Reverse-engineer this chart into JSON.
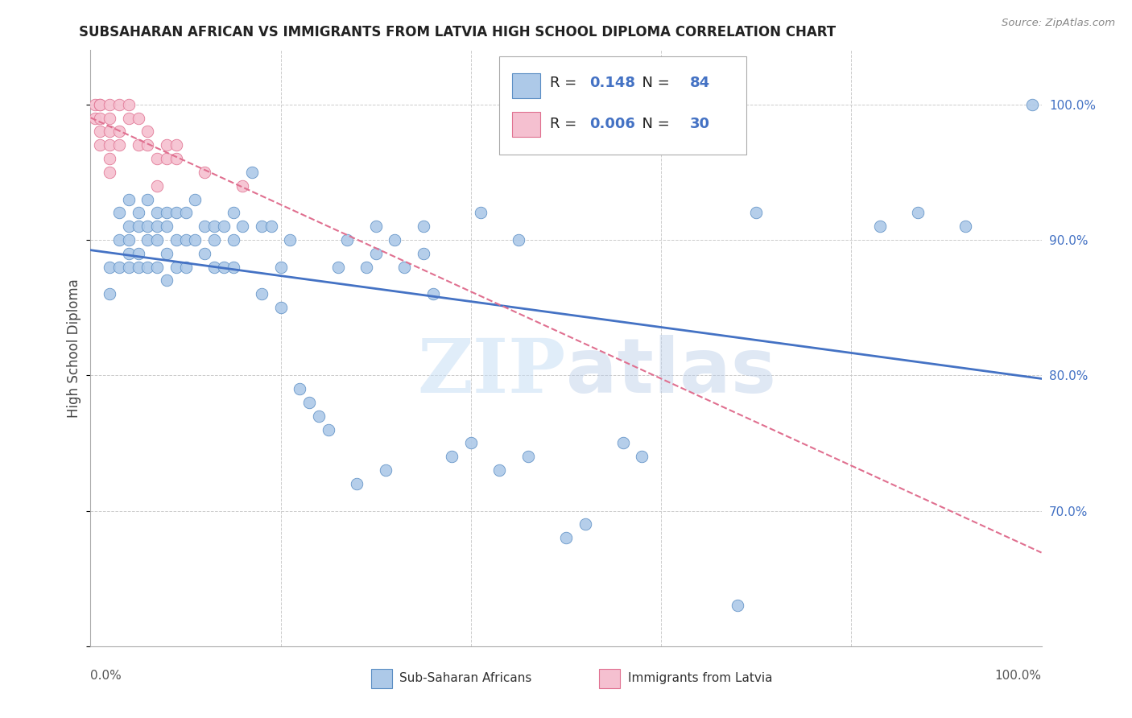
{
  "title": "SUBSAHARAN AFRICAN VS IMMIGRANTS FROM LATVIA HIGH SCHOOL DIPLOMA CORRELATION CHART",
  "source": "Source: ZipAtlas.com",
  "ylabel": "High School Diploma",
  "legend_blue_R": "0.148",
  "legend_blue_N": "84",
  "legend_pink_R": "0.006",
  "legend_pink_N": "30",
  "legend_label_blue": "Sub-Saharan Africans",
  "legend_label_pink": "Immigrants from Latvia",
  "watermark_zip": "ZIP",
  "watermark_atlas": "atlas",
  "blue_color": "#adc9e8",
  "blue_edge_color": "#5b8ec4",
  "blue_line_color": "#4472c4",
  "pink_color": "#f5c0d0",
  "pink_edge_color": "#e07090",
  "pink_line_color": "#e07090",
  "blue_scatter_x": [
    0.02,
    0.02,
    0.03,
    0.03,
    0.03,
    0.04,
    0.04,
    0.04,
    0.04,
    0.04,
    0.05,
    0.05,
    0.05,
    0.05,
    0.06,
    0.06,
    0.06,
    0.06,
    0.07,
    0.07,
    0.07,
    0.07,
    0.08,
    0.08,
    0.08,
    0.08,
    0.09,
    0.09,
    0.09,
    0.1,
    0.1,
    0.1,
    0.11,
    0.11,
    0.12,
    0.12,
    0.13,
    0.13,
    0.13,
    0.14,
    0.14,
    0.15,
    0.15,
    0.15,
    0.16,
    0.17,
    0.18,
    0.18,
    0.19,
    0.2,
    0.2,
    0.21,
    0.22,
    0.23,
    0.24,
    0.25,
    0.26,
    0.27,
    0.28,
    0.29,
    0.3,
    0.31,
    0.32,
    0.33,
    0.35,
    0.36,
    0.38,
    0.4,
    0.41,
    0.43,
    0.45,
    0.46,
    0.5,
    0.52,
    0.56,
    0.58,
    0.68,
    0.7,
    0.83,
    0.87,
    0.92,
    0.99,
    0.3,
    0.35
  ],
  "blue_scatter_y": [
    0.88,
    0.86,
    0.92,
    0.9,
    0.88,
    0.93,
    0.91,
    0.9,
    0.89,
    0.88,
    0.92,
    0.91,
    0.89,
    0.88,
    0.93,
    0.91,
    0.9,
    0.88,
    0.92,
    0.91,
    0.9,
    0.88,
    0.92,
    0.91,
    0.89,
    0.87,
    0.92,
    0.9,
    0.88,
    0.92,
    0.9,
    0.88,
    0.93,
    0.9,
    0.91,
    0.89,
    0.91,
    0.9,
    0.88,
    0.91,
    0.88,
    0.92,
    0.9,
    0.88,
    0.91,
    0.95,
    0.91,
    0.86,
    0.91,
    0.88,
    0.85,
    0.9,
    0.79,
    0.78,
    0.77,
    0.76,
    0.88,
    0.9,
    0.72,
    0.88,
    0.91,
    0.73,
    0.9,
    0.88,
    0.91,
    0.86,
    0.74,
    0.75,
    0.92,
    0.73,
    0.9,
    0.74,
    0.68,
    0.69,
    0.75,
    0.74,
    0.63,
    0.92,
    0.91,
    0.92,
    0.91,
    1.0,
    0.89,
    0.89
  ],
  "pink_scatter_x": [
    0.005,
    0.005,
    0.01,
    0.01,
    0.01,
    0.01,
    0.01,
    0.02,
    0.02,
    0.02,
    0.02,
    0.02,
    0.02,
    0.03,
    0.03,
    0.03,
    0.04,
    0.04,
    0.05,
    0.05,
    0.06,
    0.06,
    0.07,
    0.07,
    0.08,
    0.08,
    0.09,
    0.09,
    0.12,
    0.16
  ],
  "pink_scatter_y": [
    1.0,
    0.99,
    1.0,
    1.0,
    0.99,
    0.98,
    0.97,
    1.0,
    0.99,
    0.98,
    0.97,
    0.96,
    0.95,
    1.0,
    0.98,
    0.97,
    1.0,
    0.99,
    0.99,
    0.97,
    0.98,
    0.97,
    0.96,
    0.94,
    0.97,
    0.96,
    0.97,
    0.96,
    0.95,
    0.94
  ]
}
